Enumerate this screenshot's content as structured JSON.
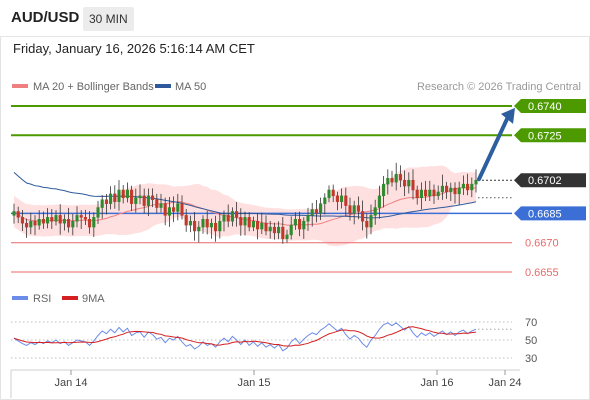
{
  "header": {
    "pair": "AUD/USD",
    "timeframe": "30 MIN",
    "datetime": "Friday, January 16, 2026 5:16:14 AM CET"
  },
  "legend": {
    "ma20": "MA 20 + Bollinger Bands",
    "ma50": "MA 50",
    "credit": "Research © 2026 Trading Central"
  },
  "rsi_legend": {
    "rsi": "RSI",
    "ma": "9MA"
  },
  "colors": {
    "target": "#4c9a00",
    "support": "#e86a6a",
    "pivot": "#3b6fd6",
    "current": "#333333",
    "ma20": "#f08080",
    "ma50": "#2e5a9c",
    "bollinger": "#ffd6d6",
    "up_candle": "#2f8a2f",
    "down_candle": "#c0392b",
    "rsi": "#6b8ce8",
    "rsi_ma": "#d42020",
    "arrow": "#2d5f9e"
  },
  "chart_data": {
    "type": "candlestick",
    "ylim": [
      0.665,
      0.6745
    ],
    "levels": [
      {
        "label": "0.6740",
        "value": 0.674,
        "kind": "target"
      },
      {
        "label": "0.6725",
        "value": 0.6725,
        "kind": "target"
      },
      {
        "label": "0.6702",
        "value": 0.6702,
        "kind": "current"
      },
      {
        "label": "0.6685",
        "value": 0.6685,
        "kind": "pivot"
      },
      {
        "label": "0.6670",
        "value": 0.667,
        "kind": "support"
      },
      {
        "label": "0.6655",
        "value": 0.6655,
        "kind": "support"
      }
    ],
    "x_ticks": [
      "Jan 14",
      "Jan 15",
      "Jan 16",
      "Jan 24"
    ],
    "closes": [
      0.6686,
      0.6683,
      0.668,
      0.6678,
      0.6681,
      0.6679,
      0.6682,
      0.668,
      0.6683,
      0.6681,
      0.6684,
      0.668,
      0.6682,
      0.6678,
      0.6681,
      0.6684,
      0.6683,
      0.6682,
      0.6678,
      0.6683,
      0.6688,
      0.6692,
      0.669,
      0.6695,
      0.6691,
      0.6697,
      0.6693,
      0.6697,
      0.669,
      0.6693,
      0.6694,
      0.6689,
      0.6694,
      0.6692,
      0.6688,
      0.669,
      0.6684,
      0.6688,
      0.6686,
      0.669,
      0.6684,
      0.6679,
      0.6681,
      0.6676,
      0.6678,
      0.6682,
      0.6678,
      0.668,
      0.6676,
      0.6681,
      0.6684,
      0.6681,
      0.6686,
      0.6683,
      0.6679,
      0.6683,
      0.6678,
      0.6681,
      0.6677,
      0.668,
      0.6676,
      0.6678,
      0.6675,
      0.6678,
      0.6672,
      0.6674,
      0.6679,
      0.6682,
      0.6677,
      0.6681,
      0.6684,
      0.6687,
      0.6685,
      0.669,
      0.6693,
      0.6697,
      0.6694,
      0.6691,
      0.6694,
      0.6689,
      0.6685,
      0.6689,
      0.6686,
      0.6681,
      0.6678,
      0.6684,
      0.6688,
      0.6694,
      0.67,
      0.6703,
      0.6701,
      0.6705,
      0.6702,
      0.6699,
      0.6702,
      0.6697,
      0.6693,
      0.6697,
      0.6694,
      0.6697,
      0.6694,
      0.6696,
      0.6699,
      0.6696,
      0.6698,
      0.6695,
      0.6698,
      0.67,
      0.6697,
      0.67,
      0.6702
    ],
    "rsi": {
      "levels": [
        70,
        50,
        30
      ],
      "ylim": [
        20,
        80
      ],
      "values": [
        52,
        49,
        46,
        44,
        47,
        45,
        48,
        46,
        49,
        47,
        50,
        46,
        48,
        44,
        47,
        50,
        49,
        48,
        44,
        49,
        55,
        60,
        57,
        62,
        58,
        64,
        59,
        63,
        55,
        58,
        59,
        53,
        59,
        56,
        51,
        53,
        47,
        52,
        50,
        54,
        48,
        43,
        45,
        40,
        43,
        48,
        44,
        46,
        42,
        48,
        52,
        48,
        54,
        50,
        45,
        50,
        44,
        48,
        43,
        47,
        42,
        45,
        41,
        45,
        38,
        41,
        48,
        52,
        46,
        51,
        55,
        58,
        56,
        61,
        64,
        68,
        64,
        60,
        63,
        56,
        51,
        55,
        52,
        46,
        42,
        50,
        55,
        62,
        67,
        69,
        66,
        69,
        65,
        61,
        65,
        58,
        53,
        58,
        55,
        58,
        54,
        57,
        60,
        56,
        59,
        55,
        59,
        61,
        57,
        60,
        62
      ]
    }
  }
}
